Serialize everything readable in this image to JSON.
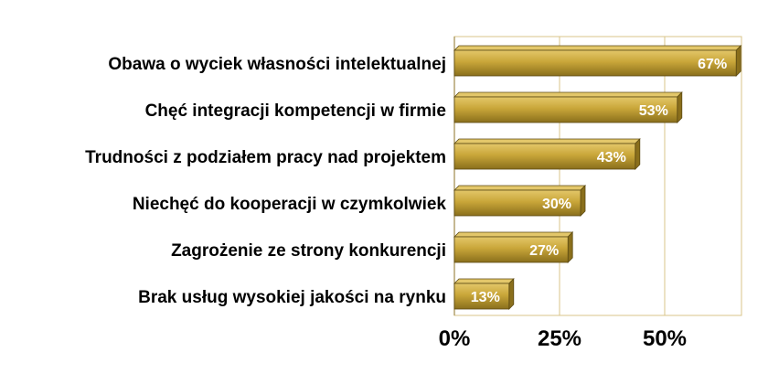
{
  "chart_data": {
    "type": "bar",
    "orientation": "horizontal",
    "categories": [
      "Obawa o wyciek własności intelektualnej",
      "Chęć integracji kompetencji w firmie",
      "Trudności z podziałem pracy nad projektem",
      "Niechęć do kooperacji w czymkolwiek",
      "Zagrożenie ze strony konkurencji",
      "Brak usług wysokiej jakości na rynku"
    ],
    "values": [
      67,
      53,
      43,
      30,
      27,
      13
    ],
    "value_labels": [
      "67%",
      "53%",
      "43%",
      "30%",
      "27%",
      "13%"
    ],
    "xlim": [
      0,
      70
    ],
    "x_ticks": [
      0,
      25,
      50
    ],
    "x_tick_labels": [
      "0%",
      "25%",
      "50%"
    ],
    "grid": true,
    "legend": "none",
    "colors": {
      "bar_fill": "#c9a639",
      "bar_highlight": "#e3c76a",
      "bar_shadow": "#8a6f1c",
      "bar_stroke": "#5c4a12",
      "grid": "#d8c48a",
      "value_text": "#ffffff"
    }
  }
}
